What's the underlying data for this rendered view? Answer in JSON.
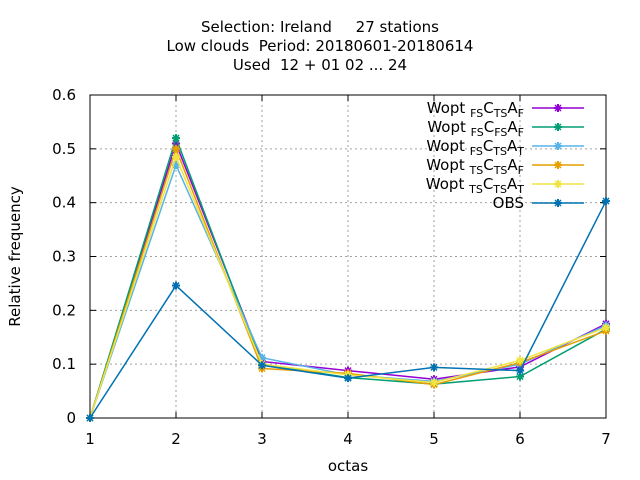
{
  "chart_data": {
    "type": "line",
    "title_lines": [
      "Selection: Ireland     27 stations",
      "Low clouds  Period: 20180601-20180614",
      "Used  12 + 01 02 ... 24"
    ],
    "xlabel": "octas",
    "ylabel": "Relative frequency",
    "x": [
      1,
      2,
      3,
      4,
      5,
      6,
      7
    ],
    "xlim": [
      1,
      7
    ],
    "ylim": [
      0,
      0.6
    ],
    "yticks": [
      "0",
      "0.1",
      "0.2",
      "0.3",
      "0.4",
      "0.5",
      "0.6"
    ],
    "xticks": [
      "1",
      "2",
      "3",
      "4",
      "5",
      "6",
      "7"
    ],
    "grid": true,
    "legend_position": "top-right",
    "series": [
      {
        "name": "Wopt FS CTS AF",
        "legend": [
          {
            "t": "Wopt "
          },
          {
            "t": "FS",
            "sub": true
          },
          {
            "t": "C"
          },
          {
            "t": "TS",
            "sub": true
          },
          {
            "t": "A"
          },
          {
            "t": "F",
            "sub": true
          }
        ],
        "color": "#9400d3",
        "values": [
          0.0,
          0.51,
          0.105,
          0.088,
          0.072,
          0.095,
          0.175
        ]
      },
      {
        "name": "Wopt FS CFS AF",
        "legend": [
          {
            "t": "Wopt "
          },
          {
            "t": "FS",
            "sub": true
          },
          {
            "t": "C"
          },
          {
            "t": "FS",
            "sub": true
          },
          {
            "t": "A"
          },
          {
            "t": "F",
            "sub": true
          }
        ],
        "color": "#009e73",
        "values": [
          0.0,
          0.52,
          0.1,
          0.075,
          0.063,
          0.077,
          0.165
        ]
      },
      {
        "name": "Wopt FS CTS AT",
        "legend": [
          {
            "t": "Wopt "
          },
          {
            "t": "FS",
            "sub": true
          },
          {
            "t": "C"
          },
          {
            "t": "TS",
            "sub": true
          },
          {
            "t": "A"
          },
          {
            "t": "T",
            "sub": true
          }
        ],
        "color": "#56b4e9",
        "values": [
          0.0,
          0.47,
          0.112,
          0.08,
          0.068,
          0.1,
          0.172
        ]
      },
      {
        "name": "Wopt TS CTS AF",
        "legend": [
          {
            "t": "Wopt "
          },
          {
            "t": "TS",
            "sub": true
          },
          {
            "t": "C"
          },
          {
            "t": "TS",
            "sub": true
          },
          {
            "t": "A"
          },
          {
            "t": "F",
            "sub": true
          }
        ],
        "color": "#e69f00",
        "values": [
          0.0,
          0.5,
          0.092,
          0.083,
          0.062,
          0.103,
          0.162
        ]
      },
      {
        "name": "Wopt TS CTS AT",
        "legend": [
          {
            "t": "Wopt "
          },
          {
            "t": "TS",
            "sub": true
          },
          {
            "t": "C"
          },
          {
            "t": "TS",
            "sub": true
          },
          {
            "t": "A"
          },
          {
            "t": "T",
            "sub": true
          }
        ],
        "color": "#f0e442",
        "values": [
          0.0,
          0.485,
          0.1,
          0.08,
          0.066,
          0.107,
          0.168
        ]
      },
      {
        "name": "OBS",
        "legend": [
          {
            "t": "OBS"
          }
        ],
        "color": "#0072b2",
        "values": [
          0.0,
          0.246,
          0.098,
          0.074,
          0.094,
          0.088,
          0.403
        ]
      }
    ]
  }
}
